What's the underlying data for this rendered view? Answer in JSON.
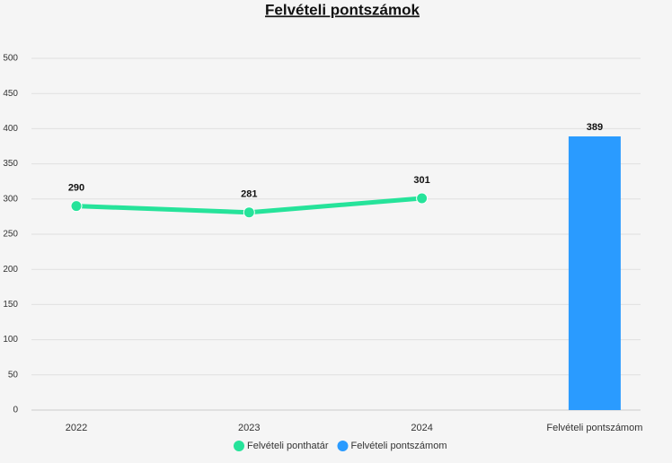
{
  "chart_data": {
    "type": "combo",
    "title": "Felvételi pontszámok",
    "categories": [
      "2022",
      "2023",
      "2024",
      "Felvételi pontszámom"
    ],
    "series": [
      {
        "name": "Felvételi ponthatár",
        "type": "line",
        "color": "#26e39a",
        "values": [
          290,
          281,
          301,
          null
        ]
      },
      {
        "name": "Felvételi pontszámom",
        "type": "bar",
        "color": "#2a9bff",
        "values": [
          null,
          null,
          null,
          389
        ]
      }
    ],
    "ylim": [
      0,
      500
    ],
    "yticks": [
      0,
      50,
      100,
      150,
      200,
      250,
      300,
      350,
      400,
      450,
      500
    ],
    "grid": true,
    "data_labels": true,
    "legend": "bottom"
  }
}
